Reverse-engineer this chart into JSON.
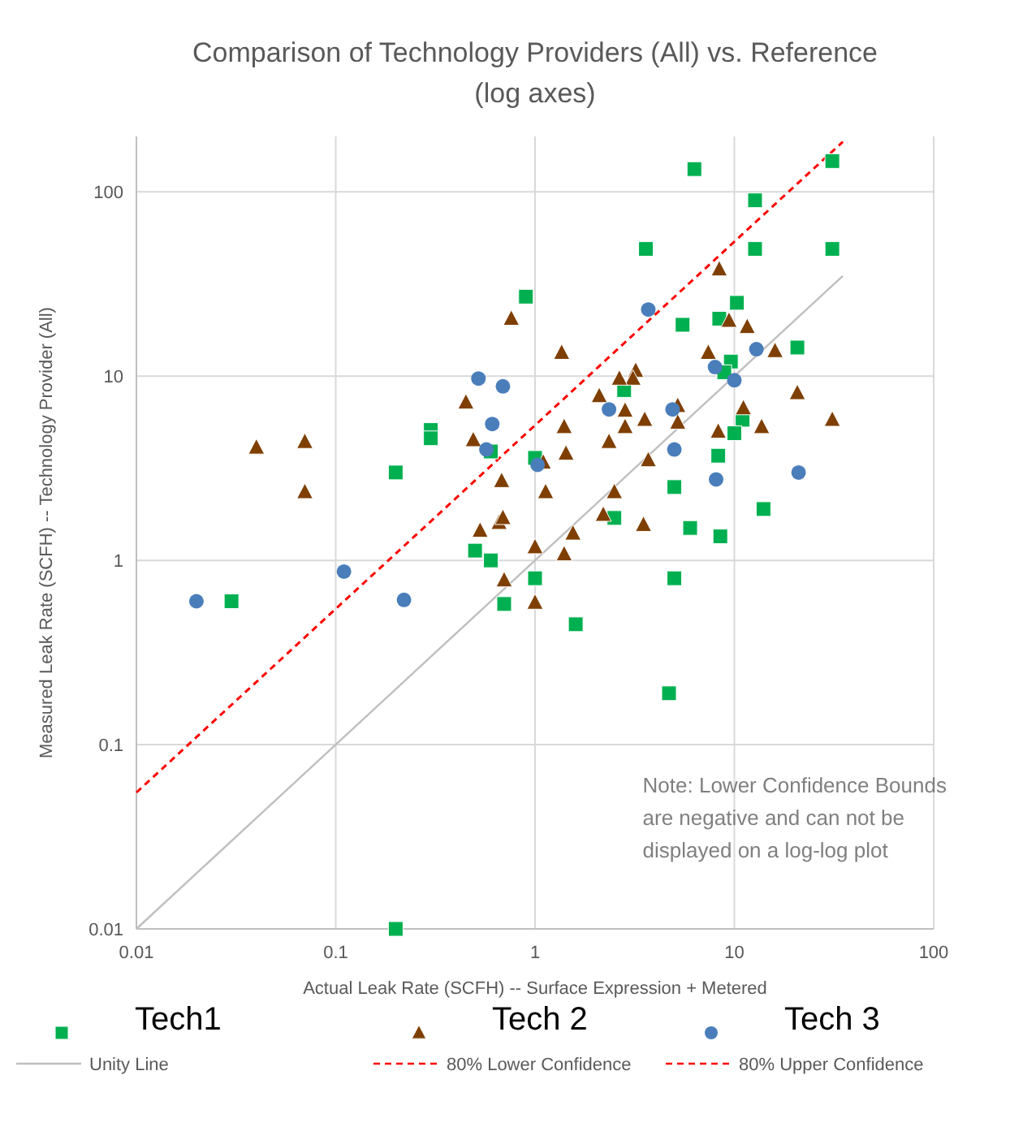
{
  "chart_data": {
    "type": "scatter",
    "title": "Comparison of Technology Providers (All) vs. Reference (log axes)",
    "xlabel": "Actual Leak Rate (SCFH) -- Surface Expression + Metered",
    "ylabel": "Measured Leak Rate (SCFH) -- Technology Provider (All)",
    "log": "xy",
    "xlim": [
      0.01,
      100
    ],
    "ylim": [
      0.01,
      200
    ],
    "xticks": [
      0.01,
      0.1,
      1,
      10,
      100
    ],
    "yticks": [
      0.01,
      0.1,
      1,
      10,
      100
    ],
    "grid": true,
    "legend": "bottom",
    "annotations": [
      "Note: Lower Confidence Bounds are negative and can not be displayed on a log-log plot"
    ],
    "series": [
      {
        "name": "Unity Line",
        "type": "line",
        "color": "#bfbfbf",
        "line_style": "solid",
        "x": [
          0.01,
          35
        ],
        "values": [
          0.01,
          35
        ]
      },
      {
        "name": "80% Lower Confidence",
        "type": "line",
        "color": "#ff0000",
        "line_style": "dashed"
      },
      {
        "name": "80% Upper Confidence",
        "type": "line",
        "color": "#ff0000",
        "line_style": "dashed",
        "x": [
          0.01,
          35
        ],
        "values": [
          0.055,
          187
        ]
      },
      {
        "name": "Tech1",
        "color": "#00b050",
        "marker": "square",
        "x": [
          0.03,
          0.2,
          0.2,
          0.3,
          0.3,
          0.6,
          0.9,
          1.0,
          0.5,
          0.6,
          0.7,
          1.0,
          1.6,
          4.7,
          5,
          6,
          8.5,
          2.5,
          6.3,
          31,
          12.7,
          3.6,
          12.7,
          31,
          10.3,
          5.5,
          8.4,
          20.7,
          9.6,
          8.9,
          2.8,
          11,
          10,
          8.3,
          5,
          14
        ],
        "values": [
          0.6,
          3,
          0.01,
          5.1,
          4.6,
          3.9,
          27,
          3.6,
          1.13,
          1.0,
          0.58,
          0.8,
          0.45,
          0.19,
          0.8,
          1.5,
          1.35,
          1.7,
          133,
          147,
          90,
          49,
          49,
          49,
          25,
          19,
          20.5,
          14.3,
          12,
          10.5,
          8.4,
          5.8,
          4.9,
          3.7,
          2.5,
          1.9
        ]
      },
      {
        "name": "Tech 2",
        "color": "#7f3f00",
        "marker": "triangle",
        "x": [
          0.04,
          0.07,
          0.07,
          0.76,
          0.45,
          0.49,
          0.68,
          0.53,
          0.66,
          0.69,
          1.13,
          1.1,
          1.0,
          0.7,
          1.0,
          1.36,
          8.4,
          9.4,
          11.6,
          7.4,
          16,
          3.2,
          3.1,
          2.65,
          2.1,
          1.4,
          1.43,
          2.35,
          2.83,
          2.83,
          3.55,
          5.2,
          5.2,
          11.1,
          13.7,
          20.7,
          31,
          8.3,
          3.7,
          2.5,
          2.2,
          3.5,
          1.55,
          1.4
        ],
        "values": [
          4.1,
          4.4,
          2.35,
          20.5,
          7.2,
          4.5,
          2.7,
          1.45,
          1.6,
          1.7,
          2.35,
          3.4,
          1.18,
          0.78,
          0.59,
          13.4,
          38,
          20,
          18.5,
          13.4,
          13.7,
          10.7,
          9.7,
          9.7,
          7.8,
          5.3,
          3.8,
          4.4,
          6.5,
          5.3,
          5.8,
          6.9,
          5.6,
          6.7,
          5.3,
          8.1,
          5.8,
          5.0,
          3.5,
          2.35,
          1.77,
          1.56,
          1.4,
          1.08
        ]
      },
      {
        "name": "Tech 3",
        "color": "#4a7ebb",
        "marker": "circle",
        "x": [
          0.52,
          0.69,
          0.61,
          0.57,
          1.03,
          0.02,
          0.11,
          0.22,
          3.7,
          12.9,
          8,
          10,
          2.35,
          4.9,
          5,
          8.1,
          21
        ],
        "values": [
          9.7,
          8.8,
          5.5,
          4.0,
          3.3,
          0.6,
          0.87,
          0.61,
          23,
          14,
          11.2,
          9.5,
          6.6,
          6.6,
          4.0,
          2.75,
          3.0
        ]
      }
    ]
  }
}
